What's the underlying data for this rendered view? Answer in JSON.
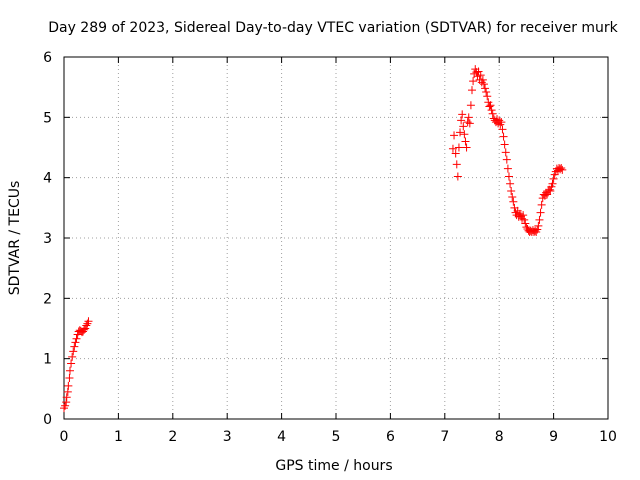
{
  "chart_data": {
    "type": "scatter",
    "title": "Day 289 of 2023, Sidereal Day-to-day VTEC variation (SDTVAR) for receiver murk",
    "xlabel": "GPS time / hours",
    "ylabel": "SDTVAR / TECUs",
    "xlim": [
      0,
      10
    ],
    "ylim": [
      0,
      6
    ],
    "xticks": [
      0,
      1,
      2,
      3,
      4,
      5,
      6,
      7,
      8,
      9,
      10
    ],
    "yticks": [
      0,
      1,
      2,
      3,
      4,
      5,
      6
    ],
    "grid": true,
    "marker": "+",
    "series": [
      {
        "name": "SDTVAR",
        "color": "#ff0000",
        "points": [
          [
            0.0,
            0.18
          ],
          [
            0.02,
            0.22
          ],
          [
            0.04,
            0.28
          ],
          [
            0.05,
            0.36
          ],
          [
            0.07,
            0.45
          ],
          [
            0.08,
            0.55
          ],
          [
            0.1,
            0.68
          ],
          [
            0.11,
            0.8
          ],
          [
            0.13,
            0.92
          ],
          [
            0.15,
            1.03
          ],
          [
            0.17,
            1.12
          ],
          [
            0.19,
            1.2
          ],
          [
            0.21,
            1.27
          ],
          [
            0.23,
            1.33
          ],
          [
            0.25,
            1.4
          ],
          [
            0.27,
            1.45
          ],
          [
            0.29,
            1.47
          ],
          [
            0.31,
            1.46
          ],
          [
            0.33,
            1.44
          ],
          [
            0.35,
            1.45
          ],
          [
            0.37,
            1.48
          ],
          [
            0.39,
            1.5
          ],
          [
            0.41,
            1.55
          ],
          [
            0.43,
            1.58
          ],
          [
            0.45,
            1.62
          ],
          [
            7.15,
            4.48
          ],
          [
            7.17,
            4.7
          ],
          [
            7.2,
            4.4
          ],
          [
            7.22,
            4.22
          ],
          [
            7.24,
            4.02
          ],
          [
            7.26,
            4.5
          ],
          [
            7.28,
            4.75
          ],
          [
            7.3,
            4.95
          ],
          [
            7.32,
            5.05
          ],
          [
            7.34,
            4.85
          ],
          [
            7.36,
            4.72
          ],
          [
            7.38,
            4.6
          ],
          [
            7.4,
            4.5
          ],
          [
            7.42,
            4.92
          ],
          [
            7.44,
            5.0
          ],
          [
            7.46,
            4.9
          ],
          [
            7.48,
            5.2
          ],
          [
            7.5,
            5.45
          ],
          [
            7.52,
            5.6
          ],
          [
            7.54,
            5.72
          ],
          [
            7.56,
            5.8
          ],
          [
            7.58,
            5.75
          ],
          [
            7.6,
            5.68
          ],
          [
            7.62,
            5.76
          ],
          [
            7.64,
            5.62
          ],
          [
            7.66,
            5.7
          ],
          [
            7.68,
            5.58
          ],
          [
            7.7,
            5.62
          ],
          [
            7.72,
            5.55
          ],
          [
            7.74,
            5.48
          ],
          [
            7.76,
            5.42
          ],
          [
            7.78,
            5.35
          ],
          [
            7.8,
            5.25
          ],
          [
            7.82,
            5.18
          ],
          [
            7.84,
            5.2
          ],
          [
            7.86,
            5.12
          ],
          [
            7.88,
            5.06
          ],
          [
            7.9,
            4.98
          ],
          [
            7.92,
            4.95
          ],
          [
            7.94,
            4.92
          ],
          [
            7.96,
            4.97
          ],
          [
            7.98,
            4.9
          ],
          [
            8.0,
            4.95
          ],
          [
            8.02,
            4.88
          ],
          [
            8.04,
            4.92
          ],
          [
            8.06,
            4.8
          ],
          [
            8.08,
            4.68
          ],
          [
            8.1,
            4.55
          ],
          [
            8.12,
            4.42
          ],
          [
            8.14,
            4.3
          ],
          [
            8.16,
            4.15
          ],
          [
            8.18,
            4.02
          ],
          [
            8.2,
            3.9
          ],
          [
            8.22,
            3.78
          ],
          [
            8.24,
            3.68
          ],
          [
            8.26,
            3.6
          ],
          [
            8.28,
            3.5
          ],
          [
            8.3,
            3.42
          ],
          [
            8.32,
            3.38
          ],
          [
            8.34,
            3.45
          ],
          [
            8.36,
            3.35
          ],
          [
            8.38,
            3.4
          ],
          [
            8.4,
            3.36
          ],
          [
            8.42,
            3.32
          ],
          [
            8.44,
            3.38
          ],
          [
            8.46,
            3.3
          ],
          [
            8.48,
            3.24
          ],
          [
            8.5,
            3.18
          ],
          [
            8.52,
            3.15
          ],
          [
            8.54,
            3.12
          ],
          [
            8.56,
            3.1
          ],
          [
            8.58,
            3.12
          ],
          [
            8.6,
            3.1
          ],
          [
            8.62,
            3.13
          ],
          [
            8.64,
            3.1
          ],
          [
            8.66,
            3.12
          ],
          [
            8.68,
            3.1
          ],
          [
            8.7,
            3.14
          ],
          [
            8.72,
            3.2
          ],
          [
            8.74,
            3.3
          ],
          [
            8.76,
            3.42
          ],
          [
            8.78,
            3.55
          ],
          [
            8.8,
            3.66
          ],
          [
            8.82,
            3.72
          ],
          [
            8.84,
            3.7
          ],
          [
            8.86,
            3.75
          ],
          [
            8.88,
            3.72
          ],
          [
            8.9,
            3.78
          ],
          [
            8.92,
            3.8
          ],
          [
            8.94,
            3.78
          ],
          [
            8.96,
            3.85
          ],
          [
            8.98,
            3.9
          ],
          [
            9.0,
            3.98
          ],
          [
            9.02,
            4.05
          ],
          [
            9.04,
            4.1
          ],
          [
            9.06,
            4.15
          ],
          [
            9.08,
            4.12
          ],
          [
            9.1,
            4.16
          ],
          [
            9.12,
            4.14
          ],
          [
            9.14,
            4.16
          ],
          [
            9.16,
            4.13
          ]
        ]
      }
    ]
  }
}
